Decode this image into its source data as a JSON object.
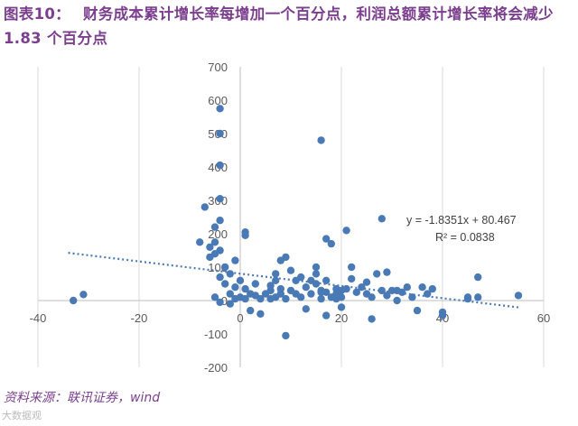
{
  "title": {
    "label": "图表10：",
    "text": "财务成本累计增长率每增加一个百分点，利润总额累计增长率将会减少 1.83 个百分点"
  },
  "source": "资料来源：联讯证券，wind",
  "watermark": "大数据观",
  "colors": {
    "title": "#7b3f8e",
    "points": "#4a7ab5",
    "trendline": "#4a7ab5",
    "grid": "#d9d9d9",
    "axis": "#bfbfbf"
  },
  "chart_data": {
    "type": "scatter",
    "title": "",
    "xlabel": "",
    "ylabel": "",
    "xlim": [
      -40,
      60
    ],
    "ylim": [
      -200,
      700
    ],
    "x_ticks": [
      -40,
      -20,
      0,
      20,
      40,
      60
    ],
    "y_ticks": [
      -200,
      -100,
      0,
      100,
      200,
      300,
      400,
      500,
      600,
      700
    ],
    "grid": {
      "vertical": true,
      "horizontal": false
    },
    "trendline": {
      "type": "linear",
      "slope": -1.8351,
      "intercept": 80.467,
      "x_range": [
        -34,
        55
      ],
      "equation": "y = -1.8351x + 80.467",
      "r2": "R² = 0.0838"
    },
    "points": [
      [
        -33,
        0
      ],
      [
        -31,
        18
      ],
      [
        -8,
        175
      ],
      [
        -7,
        280
      ],
      [
        -6,
        130
      ],
      [
        -6,
        160
      ],
      [
        -5,
        220
      ],
      [
        -5,
        175
      ],
      [
        -5,
        140
      ],
      [
        -4,
        575
      ],
      [
        -4,
        500
      ],
      [
        -4,
        405
      ],
      [
        -4,
        305
      ],
      [
        -4,
        240
      ],
      [
        -4,
        150
      ],
      [
        -4,
        70
      ],
      [
        -5,
        10
      ],
      [
        -4,
        -5
      ],
      [
        -3,
        100
      ],
      [
        -3,
        50
      ],
      [
        -2,
        20
      ],
      [
        -2,
        80
      ],
      [
        -1,
        120
      ],
      [
        -1,
        40
      ],
      [
        -1,
        5
      ],
      [
        0,
        60
      ],
      [
        0,
        10
      ],
      [
        -2,
        -10
      ],
      [
        1,
        195
      ],
      [
        1,
        205
      ],
      [
        1,
        35
      ],
      [
        1,
        5
      ],
      [
        2,
        20
      ],
      [
        2,
        -30
      ],
      [
        3,
        50
      ],
      [
        3,
        15
      ],
      [
        4,
        -40
      ],
      [
        4,
        5
      ],
      [
        5,
        20
      ],
      [
        6,
        45
      ],
      [
        6,
        30
      ],
      [
        6,
        5
      ],
      [
        7,
        80
      ],
      [
        7,
        60
      ],
      [
        7,
        10
      ],
      [
        8,
        35
      ],
      [
        8,
        120
      ],
      [
        8,
        20
      ],
      [
        9,
        -105
      ],
      [
        9,
        130
      ],
      [
        9,
        5
      ],
      [
        10,
        90
      ],
      [
        10,
        30
      ],
      [
        11,
        60
      ],
      [
        11,
        20
      ],
      [
        12,
        10
      ],
      [
        12,
        70
      ],
      [
        13,
        40
      ],
      [
        13,
        -25
      ],
      [
        14,
        60
      ],
      [
        14,
        20
      ],
      [
        15,
        80
      ],
      [
        15,
        100
      ],
      [
        15,
        50
      ],
      [
        16,
        480
      ],
      [
        16,
        25
      ],
      [
        16,
        5
      ],
      [
        16,
        30
      ],
      [
        17,
        185
      ],
      [
        17,
        60
      ],
      [
        17,
        25
      ],
      [
        17,
        -45
      ],
      [
        18,
        170
      ],
      [
        18,
        10
      ],
      [
        19,
        35
      ],
      [
        19,
        20
      ],
      [
        19,
        5
      ],
      [
        20,
        -20
      ],
      [
        20,
        10
      ],
      [
        20,
        30
      ],
      [
        21,
        210
      ],
      [
        21,
        35
      ],
      [
        22,
        100
      ],
      [
        22,
        65
      ],
      [
        23,
        25
      ],
      [
        24,
        40
      ],
      [
        25,
        20
      ],
      [
        25,
        55
      ],
      [
        26,
        -55
      ],
      [
        26,
        10
      ],
      [
        27,
        80
      ],
      [
        28,
        245
      ],
      [
        28,
        30
      ],
      [
        29,
        85
      ],
      [
        29,
        15
      ],
      [
        30,
        30
      ],
      [
        31,
        30
      ],
      [
        31,
        0
      ],
      [
        32,
        25
      ],
      [
        33,
        40
      ],
      [
        34,
        10
      ],
      [
        35,
        -30
      ],
      [
        36,
        40
      ],
      [
        37,
        20
      ],
      [
        38,
        35
      ],
      [
        40,
        -35
      ],
      [
        40,
        -45
      ],
      [
        45,
        5
      ],
      [
        45,
        10
      ],
      [
        47,
        10
      ],
      [
        47,
        70
      ],
      [
        55,
        15
      ]
    ]
  }
}
